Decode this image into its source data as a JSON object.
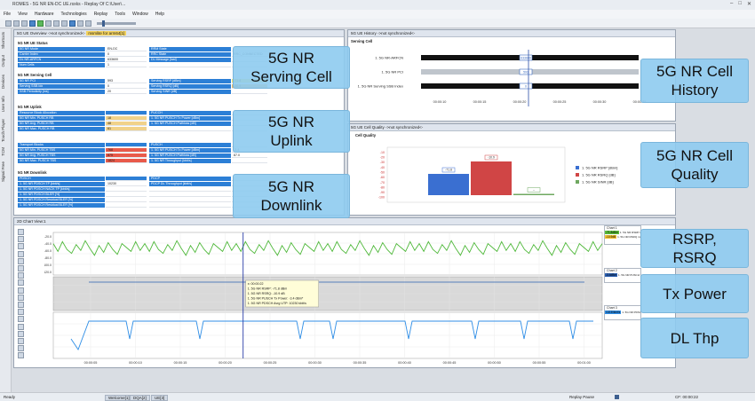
{
  "window": {
    "title": "ROMES - 5G NR EN-DC UE.rsxks - Replay Of C:\\User\\..."
  },
  "menu": [
    "File",
    "View",
    "Hardware",
    "Technologies",
    "Replay",
    "Tools",
    "Window",
    "Help"
  ],
  "sidebar": [
    "Shortcuts",
    "Output",
    "Devices",
    "User Info",
    "Touch Player",
    "TCM",
    "Signal Free"
  ],
  "overview": {
    "title": "5G UE Overview ->not synchronized<-",
    "title_hl": "msmlite for arm64[1]",
    "ue_status": {
      "header": "5G NR UE Status",
      "rows": [
        {
          "l": "5G NR Mode",
          "v": "EN-DC",
          "l2": "RRM State",
          "v2": ""
        },
        {
          "l": "Carrier Index",
          "v": "0",
          "l2": "RRC State",
          "v2": "RRC_CONNECTED"
        },
        {
          "l": "DL NR-ARFCN",
          "v": "633600",
          "l2": "DL Message [last]",
          "v2": ""
        },
        {
          "l": "Num Cells",
          "v": "1",
          "l2": "",
          "v2": ""
        }
      ]
    },
    "serving": {
      "header": "5G NR Serving Cell",
      "rows": [
        {
          "l": "5G NR PCI",
          "v": "593",
          "l2": "Serving RSRP [dBm]",
          "v2": "-71.8"
        },
        {
          "l": "Serving SSB Idx",
          "v": "0",
          "l2": "Serving RSRQ [dB]",
          "v2": "-10.9"
        },
        {
          "l": "SSB Periodicity [ms]",
          "v": "20",
          "l2": "Serving SINR [dB]",
          "v2": ""
        }
      ]
    },
    "uplink": {
      "header": "5G NR Uplink",
      "rows": [
        {
          "l": "Resource Block Allocation",
          "v": "",
          "l2": "PUCCH",
          "v2": ""
        },
        {
          "l": "5G NR Min. PUSCH RB",
          "v": "18",
          "l2": "1. 5G NR PUSCH Tx Power [dBm]",
          "v2": ""
        },
        {
          "l": "5G NR Avg. PUSCH RB",
          "v": "48",
          "l2": "1. 5G NR PUSCH Pathloss [dB]",
          "v2": ""
        },
        {
          "l": "5G NR Max. PUSCH RB",
          "v": "61",
          "l2": "",
          "v2": ""
        }
      ],
      "tb_rows": [
        {
          "l": "Transport Blocks",
          "v": "",
          "l2": "PUSCH",
          "v2": ""
        },
        {
          "l": "5G NR Min. PUSCH TBS",
          "v": "768",
          "l2": "1. 5G NR PUSCH Tx Power [dBm]",
          "v2": "-3.4"
        },
        {
          "l": "5G NR Avg. PUSCH TBS",
          "v": "875",
          "l2": "1. 5G NR PUSCH Pathloss [dB]",
          "v2": "87.0"
        },
        {
          "l": "5G NR Max. PUSCH TBS",
          "v": "1824",
          "l2": "1. 5G NR Throughput [kbit/s]",
          "v2": ""
        }
      ]
    },
    "downlink": {
      "header": "5G NR Downlink",
      "rows": [
        {
          "l": "PDSCH",
          "v": "",
          "l2": "PDCP",
          "v2": ""
        },
        {
          "l": "1. 5G NR PDSCH TP [kbit/s]",
          "v": "10230",
          "l2": "PDCP DL Throughput [kbit/s]",
          "v2": ""
        },
        {
          "l": "1. 5G NR PDSCH NACK TP [kbit/s]",
          "v": "",
          "l2": "",
          "v2": ""
        },
        {
          "l": "1. 5G NR PDSCH BLER [%]",
          "v": "",
          "l2": "",
          "v2": ""
        },
        {
          "l": "1. 5G NR PDSCH Residual BLER [%]",
          "v": "",
          "l2": "",
          "v2": ""
        },
        {
          "l": "1. 5G NR PDSCH Residual BLER [%]",
          "v": "",
          "l2": "",
          "v2": ""
        }
      ]
    }
  },
  "history": {
    "title": "5G UE History ->not synchronized<-",
    "section": "Serving Cell",
    "tracks": [
      {
        "label": "1. 5G NR-ARFCN",
        "value": "633600"
      },
      {
        "label": "1. 5G NR PCI",
        "value": "593"
      },
      {
        "label": "1. 5G NR Serving SSB Index",
        "value": "0"
      }
    ],
    "ticks": [
      "00:00:10",
      "00:00:15",
      "00:00:20",
      "00:00:25",
      "00:00:30",
      "00:00:35"
    ]
  },
  "quality": {
    "title": "5G UE Cell Quality ->not synchronized<-",
    "section": "Cell Quality",
    "chart_data": {
      "type": "bar",
      "categories": [
        "1. 5G NR RSRP [dBm]",
        "1. 5G NR RSRQ [dB]",
        "1. 5G NR SINR [dB]"
      ],
      "values": [
        -71.8,
        -10.9,
        0
      ],
      "colors": [
        "#3a6fd1",
        "#d04545",
        "#6fa860"
      ],
      "data_labels": [
        "-71.8",
        "-10.9",
        "--"
      ],
      "yticks": [
        "-10",
        "-20",
        "-30",
        "-40",
        "-50",
        "-60",
        "-70",
        "-80",
        "-90",
        "-100"
      ],
      "legend": "right"
    }
  },
  "chart2d": {
    "title": "2D Chart View:1",
    "ticks": [
      "00:00:05",
      "00:00:10",
      "00:00:15",
      "00:00:20",
      "00:00:25",
      "00:00:30",
      "00:00:35",
      "00:00:40",
      "00:00:45",
      "00:00:50",
      "00:00:55",
      "00:01:00"
    ],
    "yticks_top": [
      "-20.0",
      "-40.0",
      "-60.0",
      "-80.0",
      "-100.0",
      "-120.0"
    ],
    "tooltip": [
      "x: 00:00:22",
      "1. 5G NR RSRP: -71.8 dBm",
      "1. 5G NR RSRQ: -10.9 dB",
      "1. 5G NR PUSCH Tx Power: -3.4 dBm*",
      "1. 5G NR PDSCH Avrg UTP: 10230 kbit/s"
    ],
    "legends": [
      {
        "title": "Chart 1",
        "items": [
          {
            "v": "-71.8dBm",
            "t": "1. 5G NR RSRP msmlite for a",
            "c": "#5cbf3a"
          },
          {
            "v": "-10.9dB",
            "t": "1. 5G NR RSRQ msmlite for a",
            "c": "#f2c230"
          }
        ]
      },
      {
        "title": "Chart 2",
        "items": [
          {
            "v": "-3.4dBm",
            "t": "1. 5G NR PUSCH Tx Power",
            "c": "#2b5fb0"
          }
        ]
      },
      {
        "title": "Chart 3",
        "items": [
          {
            "v": "10230kbit/s",
            "t": "1. 5G NR PDSCH Avrg UTP",
            "c": "#2f8ee6"
          }
        ]
      }
    ]
  },
  "callouts": {
    "serving": [
      "5G NR",
      "Serving Cell"
    ],
    "uplink": [
      "5G NR",
      "Uplink"
    ],
    "downlink": [
      "5G NR",
      "Downlink"
    ],
    "history": [
      "5G NR Cell",
      "History"
    ],
    "quality": [
      "5G NR Cell",
      "Quality"
    ],
    "rsrp": [
      "RSRP,",
      "RSRQ"
    ],
    "tx": [
      "Tx Power"
    ],
    "dl": [
      "DL Thp"
    ]
  },
  "status": {
    "left": "Ready",
    "tabs": [
      "Welcome[1]",
      "DQA[2]",
      "UE[3]"
    ],
    "mode": "Replay Pause",
    "time": "CF: 00:00:22"
  }
}
